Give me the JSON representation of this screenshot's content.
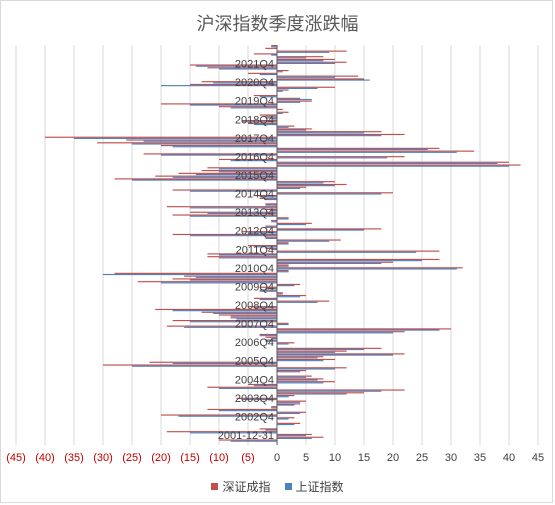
{
  "chart_data": {
    "type": "bar",
    "orientation": "horizontal",
    "title": "沪深指数季度涨跌幅",
    "categories_shown": [
      "2001-12-31",
      "2002Q4",
      "2003Q4",
      "2004Q4",
      "2005Q4",
      "2006Q4",
      "2007Q4",
      "2008Q4",
      "2009Q4",
      "2010Q4",
      "2011Q4",
      "2012Q4",
      "2013Q4",
      "2014Q4",
      "2015Q4",
      "2016Q4",
      "2017Q4",
      "2018Q4",
      "2019Q4",
      "2020Q4",
      "2021Q4"
    ],
    "xlim": [
      -45,
      45
    ],
    "x_ticks": [
      "(45)",
      "(40)",
      "(35)",
      "(30)",
      "(25)",
      "(20)",
      "(15)",
      "(10)",
      "(5)",
      "0",
      "5",
      "10",
      "15",
      "20",
      "25",
      "30",
      "35",
      "40",
      "45"
    ],
    "grid": true,
    "legend_position": "bottom",
    "series": [
      {
        "name": "深证成指",
        "color": "#c0504d",
        "values": [
          -1,
          -2,
          12,
          -4,
          8,
          10,
          12,
          -15,
          -12,
          2,
          -5,
          14,
          15,
          -13,
          -15,
          10,
          2,
          0,
          -4,
          4,
          6,
          -20,
          -10,
          1,
          2,
          -3,
          -2,
          -6,
          -5,
          3,
          6,
          18,
          22,
          -40,
          -26,
          -31,
          -20,
          28,
          34,
          -23,
          22,
          -10,
          40,
          42,
          -12,
          -13,
          -17,
          -21,
          -28,
          10,
          12,
          5,
          -18,
          20,
          -4,
          -3,
          0,
          -2,
          -19,
          -2,
          -15,
          -18,
          2,
          -1,
          6,
          -2,
          18,
          -6,
          -18,
          -2,
          11,
          2,
          -5,
          -2,
          28,
          -12,
          -12,
          28,
          20,
          2,
          32,
          2,
          -28,
          -16,
          -18,
          -24,
          4,
          -3,
          -3,
          1,
          5,
          -4,
          9,
          0,
          -5,
          -21,
          -13,
          -10,
          -8,
          -18,
          2,
          -19,
          30,
          22,
          -3,
          -2,
          -2,
          3,
          0,
          18,
          12,
          22,
          8,
          10,
          -22,
          -30,
          12,
          5,
          0,
          6,
          8,
          10,
          -5,
          -12,
          22,
          15,
          3,
          -7,
          5,
          4,
          -1,
          -12,
          5,
          -20,
          3,
          0,
          4,
          0,
          -3,
          -19,
          6,
          8,
          -10,
          0
        ],
        "count_note": ""
      },
      {
        "name": "上证指数",
        "color": "#4f81bd",
        "values": [
          -1,
          0,
          9,
          -1,
          5,
          8,
          10,
          -14,
          -10,
          1,
          -3,
          10,
          16,
          -11,
          -20,
          7,
          1,
          0,
          -3,
          6,
          4,
          -15,
          -8,
          0,
          1,
          -2,
          -1,
          -6,
          -4,
          2,
          5,
          15,
          18,
          -35,
          -23,
          -25,
          -18,
          26,
          31,
          -20,
          19,
          -8,
          38,
          40,
          -10,
          -10,
          -14,
          -18,
          -25,
          8,
          10,
          4,
          -15,
          18,
          -3,
          -2,
          0,
          -2,
          -15,
          -1,
          -12,
          -15,
          2,
          -1,
          5,
          -2,
          15,
          -5,
          -15,
          -2,
          9,
          2,
          -4,
          -1,
          24,
          -10,
          -10,
          25,
          18,
          2,
          31,
          2,
          -30,
          -14,
          -15,
          -20,
          3,
          -2,
          -3,
          1,
          4,
          -3,
          7,
          0,
          -4,
          -18,
          -11,
          -8,
          -7,
          -15,
          2,
          -16,
          28,
          20,
          -3,
          -1,
          -2,
          2,
          0,
          15,
          10,
          20,
          7,
          8,
          -18,
          -25,
          10,
          4,
          0,
          5,
          7,
          8,
          -4,
          -10,
          18,
          12,
          2,
          -6,
          4,
          3,
          -1,
          -10,
          4,
          -17,
          2,
          0,
          3,
          0,
          -2,
          -15,
          5,
          6,
          -8,
          0
        ]
      }
    ]
  },
  "legend": {
    "series1": "深证成指",
    "series2": "上证指数"
  }
}
